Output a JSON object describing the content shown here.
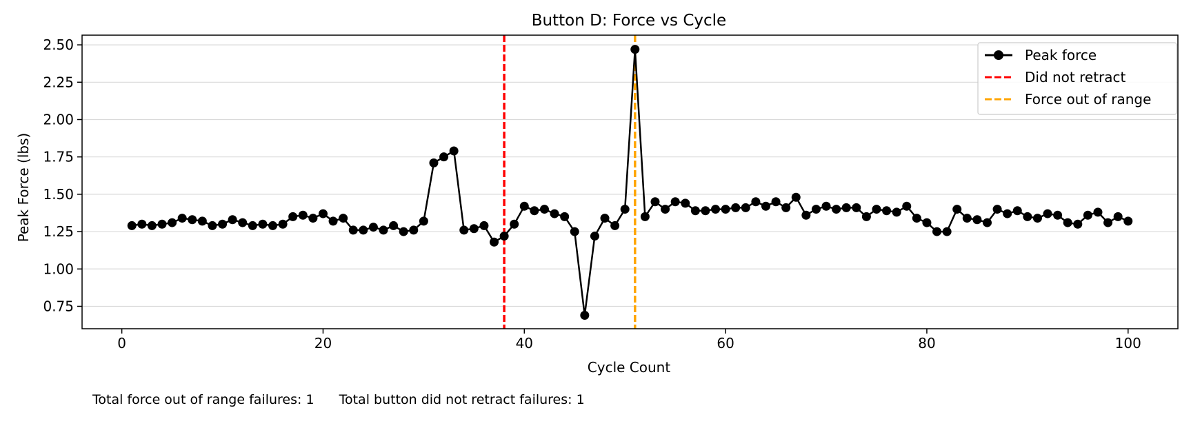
{
  "footer": {
    "force_failures_text": "Total force out of range failures: 1",
    "retract_failures_text": "Total button did not retract failures: 1"
  },
  "chart_data": {
    "type": "line",
    "title": "Button D: Force vs Cycle",
    "xlabel": "Cycle Count",
    "ylabel": "Peak Force (lbs)",
    "xlim": [
      -3.95,
      104.95
    ],
    "ylim": [
      0.6,
      2.565
    ],
    "xticks": [
      0,
      20,
      40,
      60,
      80,
      100
    ],
    "yticks": [
      0.75,
      1.0,
      1.25,
      1.5,
      1.75,
      2.0,
      2.25,
      2.5
    ],
    "ytick_labels": [
      "0.75",
      "1.00",
      "1.25",
      "1.50",
      "1.75",
      "2.00",
      "2.25",
      "2.50"
    ],
    "grid": "horizontal",
    "legend_position": "top-right",
    "colors": {
      "series": "#000000",
      "retract": "#ff0000",
      "range": "#ffa500",
      "grid": "#d9d9d9"
    },
    "series": [
      {
        "name": "Peak force",
        "x": [
          1,
          2,
          3,
          4,
          5,
          6,
          7,
          8,
          9,
          10,
          11,
          12,
          13,
          14,
          15,
          16,
          17,
          18,
          19,
          20,
          21,
          22,
          23,
          24,
          25,
          26,
          27,
          28,
          29,
          30,
          31,
          32,
          33,
          34,
          35,
          36,
          37,
          38,
          39,
          40,
          41,
          42,
          43,
          44,
          45,
          46,
          47,
          48,
          49,
          50,
          51,
          52,
          53,
          54,
          55,
          56,
          57,
          58,
          59,
          60,
          61,
          62,
          63,
          64,
          65,
          66,
          67,
          68,
          69,
          70,
          71,
          72,
          73,
          74,
          75,
          76,
          77,
          78,
          79,
          80,
          81,
          82,
          83,
          84,
          85,
          86,
          87,
          88,
          89,
          90,
          91,
          92,
          93,
          94,
          95,
          96,
          97,
          98,
          99,
          100
        ],
        "y": [
          1.29,
          1.3,
          1.29,
          1.3,
          1.31,
          1.34,
          1.33,
          1.32,
          1.29,
          1.3,
          1.33,
          1.31,
          1.29,
          1.3,
          1.29,
          1.3,
          1.35,
          1.36,
          1.34,
          1.37,
          1.32,
          1.34,
          1.26,
          1.26,
          1.28,
          1.26,
          1.29,
          1.25,
          1.26,
          1.32,
          1.71,
          1.75,
          1.79,
          1.26,
          1.27,
          1.29,
          1.18,
          1.22,
          1.3,
          1.42,
          1.39,
          1.4,
          1.37,
          1.35,
          1.25,
          0.69,
          1.22,
          1.34,
          1.29,
          1.4,
          2.47,
          1.35,
          1.45,
          1.4,
          1.45,
          1.44,
          1.39,
          1.39,
          1.4,
          1.4,
          1.41,
          1.41,
          1.45,
          1.42,
          1.45,
          1.41,
          1.48,
          1.36,
          1.4,
          1.42,
          1.4,
          1.41,
          1.41,
          1.35,
          1.4,
          1.39,
          1.38,
          1.42,
          1.34,
          1.31,
          1.25,
          1.25,
          1.4,
          1.34,
          1.33,
          1.31,
          1.4,
          1.37,
          1.39,
          1.35,
          1.34,
          1.37,
          1.36,
          1.31,
          1.3,
          1.36,
          1.38,
          1.31,
          1.35,
          1.32
        ]
      }
    ],
    "vlines": [
      {
        "name": "Did not retract",
        "x": 38,
        "color": "#ff0000",
        "style": "dashed"
      },
      {
        "name": "Force out of range",
        "x": 51,
        "color": "#ffa500",
        "style": "dashed"
      }
    ]
  }
}
